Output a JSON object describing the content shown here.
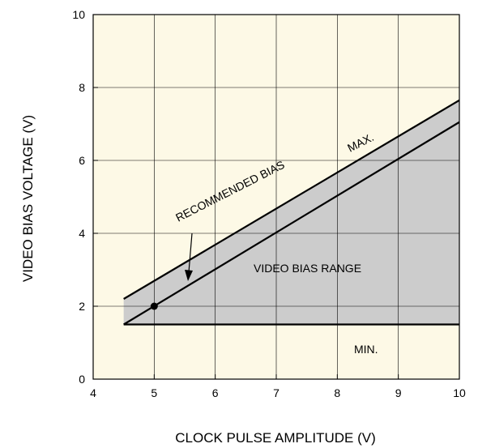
{
  "chart_data": {
    "type": "line",
    "title": "",
    "xlabel": "CLOCK PULSE AMPLITUDE (V)",
    "ylabel": "VIDEO BIAS VOLTAGE (V)",
    "xlim": [
      4,
      10
    ],
    "ylim": [
      0,
      10
    ],
    "x_ticks": [
      4,
      5,
      6,
      7,
      8,
      9,
      10
    ],
    "y_ticks": [
      0,
      2,
      4,
      6,
      8,
      10
    ],
    "grid": true,
    "colors": {
      "background": "#fdf9e6",
      "range_fill": "#cccccc",
      "lines": "#000000"
    },
    "series": [
      {
        "name": "MAX.",
        "x": [
          4.5,
          10
        ],
        "y": [
          2.2,
          7.65
        ]
      },
      {
        "name": "RECOMMENDED BIAS",
        "x": [
          4.5,
          10
        ],
        "y": [
          1.5,
          7.05
        ]
      },
      {
        "name": "MIN.",
        "x": [
          4.5,
          10
        ],
        "y": [
          1.5,
          1.5
        ]
      }
    ],
    "shaded_region": {
      "label": "VIDEO BIAS RANGE",
      "between": [
        "MIN.",
        "MAX."
      ],
      "x": [
        4.5,
        10
      ]
    },
    "marker": {
      "x": 5,
      "y": 2
    },
    "annotations": {
      "max_label": "MAX.",
      "recommended_label": "RECOMMENDED BIAS",
      "range_label": "VIDEO BIAS RANGE",
      "min_label": "MIN."
    }
  }
}
